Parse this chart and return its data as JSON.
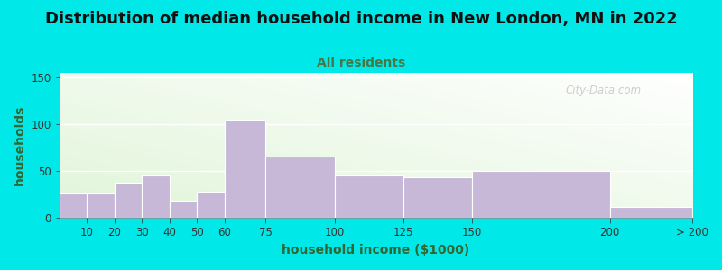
{
  "title": "Distribution of median household income in New London, MN in 2022",
  "subtitle": "All residents",
  "xlabel": "household income ($1000)",
  "ylabel": "households",
  "bar_color": "#c8b8d8",
  "bar_edgecolor": "#ffffff",
  "background_outer": "#00e8e8",
  "watermark": "City-Data.com",
  "title_fontsize": 13,
  "subtitle_fontsize": 10,
  "axis_label_fontsize": 10,
  "tick_fontsize": 8.5,
  "bar_edges": [
    0,
    10,
    20,
    30,
    40,
    50,
    60,
    75,
    100,
    125,
    150,
    200,
    230
  ],
  "bar_labels": [
    "10",
    "20",
    "30",
    "40",
    "50",
    "60",
    "75",
    "100",
    "125",
    "150",
    "200",
    "> 200"
  ],
  "values": [
    26,
    26,
    38,
    45,
    18,
    28,
    105,
    65,
    45,
    43,
    50,
    12
  ],
  "ylim": [
    0,
    155
  ],
  "yticks": [
    0,
    50,
    100,
    150
  ],
  "subtitle_color": "#447744",
  "title_color": "#111111",
  "axis_text_color": "#336633",
  "tick_color": "#333333"
}
